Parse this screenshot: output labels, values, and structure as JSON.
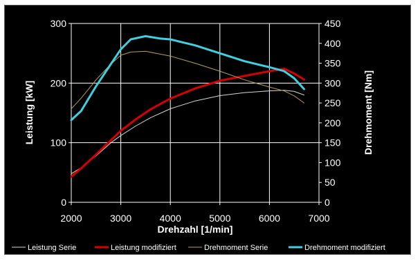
{
  "chart_data": {
    "type": "line",
    "xlabel": "Drehzahl [1/min]",
    "ylabel_left": "Leistung [kW]",
    "ylabel_right": "Drehmoment [Nm]",
    "xlim": [
      2000,
      7000
    ],
    "ylim_left": [
      0,
      300
    ],
    "ylim_right": [
      0,
      450
    ],
    "x_ticks": [
      "2000",
      "3000",
      "4000",
      "5000",
      "6000",
      "7000"
    ],
    "y_left_ticks": [
      "0",
      "100",
      "200",
      "300"
    ],
    "y_right_ticks": [
      "0",
      "50",
      "100",
      "150",
      "200",
      "250",
      "300",
      "350",
      "400",
      "450"
    ],
    "grid": true,
    "legend_position": "bottom",
    "series": [
      {
        "name": "Leistung Serie",
        "axis": "left",
        "color": "#d8d8d8",
        "width": 1,
        "points": [
          [
            2000,
            48
          ],
          [
            2200,
            58
          ],
          [
            2500,
            78
          ],
          [
            2800,
            100
          ],
          [
            3000,
            112
          ],
          [
            3300,
            128
          ],
          [
            3600,
            142
          ],
          [
            4000,
            157
          ],
          [
            4500,
            170
          ],
          [
            5000,
            179
          ],
          [
            5500,
            184
          ],
          [
            6000,
            187
          ],
          [
            6300,
            188
          ],
          [
            6500,
            186
          ],
          [
            6700,
            180
          ]
        ]
      },
      {
        "name": "Leistung modifiziert",
        "axis": "left",
        "color": "#d40000",
        "width": 3,
        "points": [
          [
            2000,
            43
          ],
          [
            2200,
            57
          ],
          [
            2500,
            80
          ],
          [
            2800,
            104
          ],
          [
            3000,
            120
          ],
          [
            3300,
            139
          ],
          [
            3600,
            156
          ],
          [
            4000,
            174
          ],
          [
            4500,
            191
          ],
          [
            5000,
            204
          ],
          [
            5500,
            212
          ],
          [
            6000,
            220
          ],
          [
            6300,
            224
          ],
          [
            6500,
            216
          ],
          [
            6700,
            206
          ]
        ]
      },
      {
        "name": "Drehmoment Serie",
        "axis": "right",
        "color": "#b8a060",
        "width": 1,
        "points": [
          [
            2000,
            235
          ],
          [
            2200,
            262
          ],
          [
            2500,
            308
          ],
          [
            2800,
            348
          ],
          [
            3000,
            370
          ],
          [
            3200,
            378
          ],
          [
            3500,
            380
          ],
          [
            4000,
            368
          ],
          [
            4500,
            350
          ],
          [
            5000,
            330
          ],
          [
            5500,
            308
          ],
          [
            6000,
            290
          ],
          [
            6300,
            280
          ],
          [
            6500,
            268
          ],
          [
            6700,
            250
          ]
        ]
      },
      {
        "name": "Drehmoment modifiziert",
        "axis": "right",
        "color": "#40d0e0",
        "width": 3,
        "points": [
          [
            2000,
            207
          ],
          [
            2200,
            230
          ],
          [
            2500,
            292
          ],
          [
            2800,
            348
          ],
          [
            3000,
            385
          ],
          [
            3200,
            410
          ],
          [
            3500,
            418
          ],
          [
            3800,
            412
          ],
          [
            4000,
            410
          ],
          [
            4500,
            395
          ],
          [
            5000,
            375
          ],
          [
            5500,
            355
          ],
          [
            6000,
            340
          ],
          [
            6300,
            330
          ],
          [
            6500,
            312
          ],
          [
            6700,
            285
          ]
        ]
      }
    ]
  }
}
